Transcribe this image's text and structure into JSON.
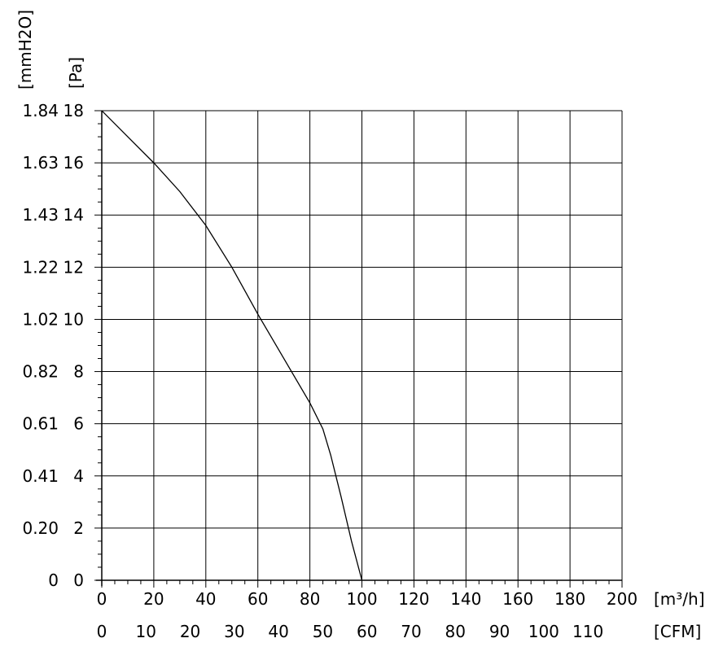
{
  "chart_data": {
    "type": "line",
    "title": "",
    "x_primary": {
      "unit_label": "[m³/h]",
      "range": [
        0,
        200
      ],
      "ticks": [
        0,
        20,
        40,
        60,
        80,
        100,
        120,
        140,
        160,
        180,
        200
      ],
      "tick_labels": [
        "0",
        "20",
        "40",
        "60",
        "80",
        "100",
        "120",
        "140",
        "160",
        "180",
        "200"
      ]
    },
    "x_secondary": {
      "unit_label": "[CFM]",
      "ticks": [
        0,
        10,
        20,
        30,
        40,
        50,
        60,
        70,
        80,
        90,
        100,
        110
      ],
      "tick_labels": [
        "0",
        "10",
        "20",
        "30",
        "40",
        "50",
        "60",
        "70",
        "80",
        "90",
        "100",
        "110"
      ]
    },
    "y_primary": {
      "unit_label": "[Pa]",
      "range": [
        0,
        18
      ],
      "ticks": [
        0,
        2,
        4,
        6,
        8,
        10,
        12,
        14,
        16,
        18
      ],
      "tick_labels": [
        "0",
        "2",
        "4",
        "6",
        "8",
        "10",
        "12",
        "14",
        "16",
        "18"
      ]
    },
    "y_secondary": {
      "unit_label": "[mmH2O]",
      "tick_labels": [
        "0",
        "0.20",
        "0.41",
        "0.61",
        "0.82",
        "1.02",
        "1.22",
        "1.43",
        "1.63",
        "1.84"
      ]
    },
    "grid": true,
    "series": [
      {
        "x": [
          0,
          10,
          20,
          30,
          40,
          50,
          60,
          70,
          80,
          85,
          88,
          92,
          96,
          100
        ],
        "y": [
          18,
          17,
          16,
          14.9,
          13.6,
          12,
          10.2,
          8.5,
          6.8,
          5.8,
          4.8,
          3.2,
          1.5,
          0
        ]
      }
    ]
  }
}
